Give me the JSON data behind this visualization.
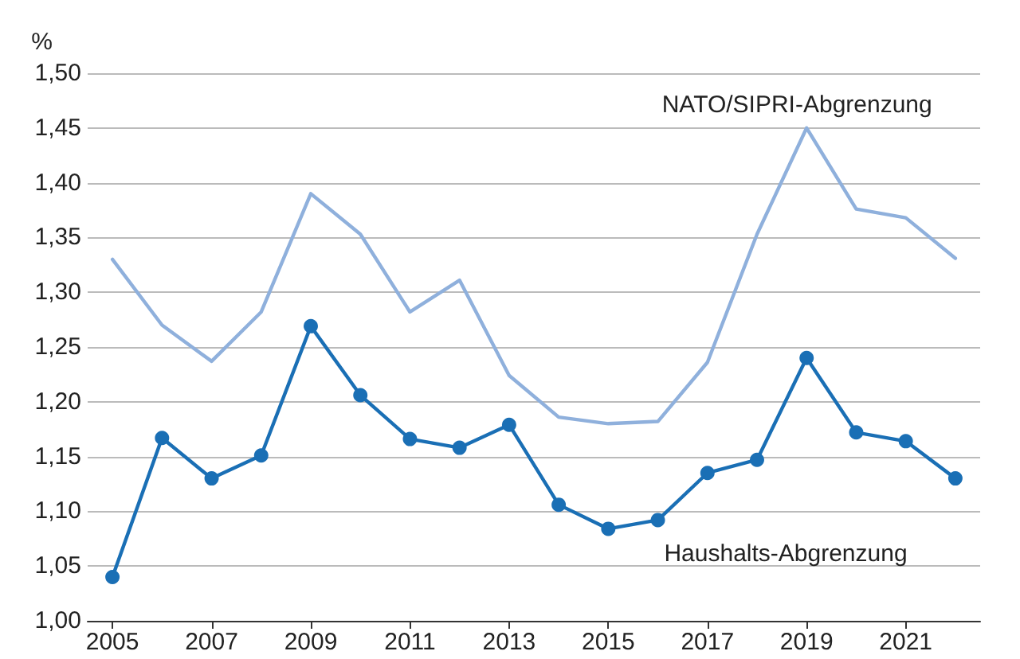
{
  "chart_data": {
    "type": "line",
    "ylabel": "%",
    "x": [
      2005,
      2006,
      2007,
      2008,
      2009,
      2010,
      2011,
      2012,
      2013,
      2014,
      2015,
      2016,
      2017,
      2018,
      2019,
      2020,
      2021,
      2022
    ],
    "series": [
      {
        "name": "NATO/SIPRI-Abgrenzung",
        "color": "#8fb0dc",
        "marker": "none",
        "values": [
          1.33,
          1.27,
          1.237,
          1.282,
          1.39,
          1.353,
          1.282,
          1.311,
          1.224,
          1.186,
          1.18,
          1.182,
          1.236,
          1.353,
          1.45,
          1.376,
          1.368,
          1.331
        ]
      },
      {
        "name": "Haushalts-Abgrenzung",
        "color": "#1a6fb5",
        "marker": "circle",
        "values": [
          1.04,
          1.167,
          1.13,
          1.151,
          1.269,
          1.206,
          1.166,
          1.158,
          1.179,
          1.106,
          1.084,
          1.092,
          1.135,
          1.147,
          1.24,
          1.172,
          1.164,
          1.13
        ]
      }
    ],
    "xlim": [
      2004.5,
      2022.5
    ],
    "xticks": [
      2005,
      2007,
      2009,
      2011,
      2013,
      2015,
      2017,
      2019,
      2021
    ],
    "ylim": [
      1.0,
      1.5
    ],
    "yticks": [
      {
        "value": 1.0,
        "label": "1,00"
      },
      {
        "value": 1.05,
        "label": "1,05"
      },
      {
        "value": 1.1,
        "label": "1,10"
      },
      {
        "value": 1.15,
        "label": "1,15"
      },
      {
        "value": 1.2,
        "label": "1,20"
      },
      {
        "value": 1.25,
        "label": "1,25"
      },
      {
        "value": 1.3,
        "label": "1,30"
      },
      {
        "value": 1.35,
        "label": "1,35"
      },
      {
        "value": 1.4,
        "label": "1,40"
      },
      {
        "value": 1.45,
        "label": "1,45"
      },
      {
        "value": 1.5,
        "label": "1,50"
      }
    ],
    "grid": "y",
    "legend": false,
    "line_style": "solid"
  }
}
